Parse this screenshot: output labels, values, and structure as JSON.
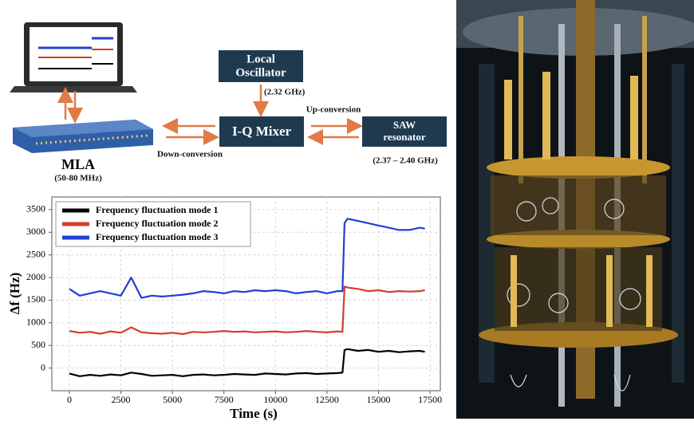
{
  "diagram": {
    "local_oscillator": [
      "Local",
      "Oscillator"
    ],
    "lo_frequency": "(2.32 GHz)",
    "mixer": "I-Q Mixer",
    "saw": [
      "SAW",
      "resonator"
    ],
    "up_conversion": "Up-conversion",
    "down_conversion": "Down-conversion",
    "saw_frequency": "(2.37 – 2.40 GHz)",
    "mla": "MLA",
    "mla_frequency": "(50-80 MHz)"
  },
  "chart_data": {
    "type": "line",
    "xlabel": "Time (s)",
    "ylabel": "Δf (Hz)",
    "x": [
      0,
      500,
      1000,
      1500,
      2000,
      2500,
      3000,
      3500,
      4000,
      4500,
      5000,
      5500,
      6000,
      6500,
      7000,
      7500,
      8000,
      8500,
      9000,
      9500,
      10000,
      10500,
      11000,
      11500,
      12000,
      12500,
      13000,
      13250,
      13350,
      13500,
      14000,
      14500,
      15000,
      15500,
      16000,
      16500,
      17000,
      17250
    ],
    "series": [
      {
        "name": "Frequency fluctuation mode 1",
        "color": "#000000",
        "values": [
          -120,
          -180,
          -150,
          -170,
          -140,
          -160,
          -100,
          -130,
          -170,
          -160,
          -150,
          -180,
          -150,
          -140,
          -160,
          -150,
          -130,
          -140,
          -150,
          -120,
          -130,
          -140,
          -120,
          -110,
          -130,
          -120,
          -110,
          -100,
          400,
          420,
          380,
          400,
          360,
          380,
          350,
          370,
          380,
          360
        ]
      },
      {
        "name": "Frequency fluctuation mode 2",
        "color": "#d93a2b",
        "values": [
          820,
          780,
          800,
          760,
          810,
          780,
          900,
          790,
          770,
          760,
          780,
          750,
          800,
          790,
          800,
          820,
          800,
          810,
          790,
          800,
          810,
          790,
          800,
          820,
          800,
          790,
          810,
          800,
          1800,
          1780,
          1750,
          1700,
          1720,
          1680,
          1700,
          1690,
          1700,
          1720
        ]
      },
      {
        "name": "Frequency fluctuation mode 3",
        "color": "#1f3fd6",
        "values": [
          1750,
          1600,
          1650,
          1700,
          1650,
          1600,
          2000,
          1550,
          1600,
          1580,
          1600,
          1620,
          1650,
          1700,
          1680,
          1650,
          1700,
          1680,
          1720,
          1700,
          1720,
          1700,
          1650,
          1680,
          1700,
          1650,
          1700,
          1700,
          3200,
          3300,
          3250,
          3200,
          3150,
          3100,
          3050,
          3050,
          3100,
          3080
        ]
      }
    ],
    "xlim": [
      -850,
      18000
    ],
    "ylim": [
      -500,
      3780
    ],
    "xticks": [
      0,
      2500,
      5000,
      7500,
      10000,
      12500,
      15000,
      17500
    ],
    "yticks": [
      0,
      500,
      1000,
      1500,
      2000,
      2500,
      3000,
      3500
    ],
    "grid": true,
    "legend": "upper-left"
  }
}
